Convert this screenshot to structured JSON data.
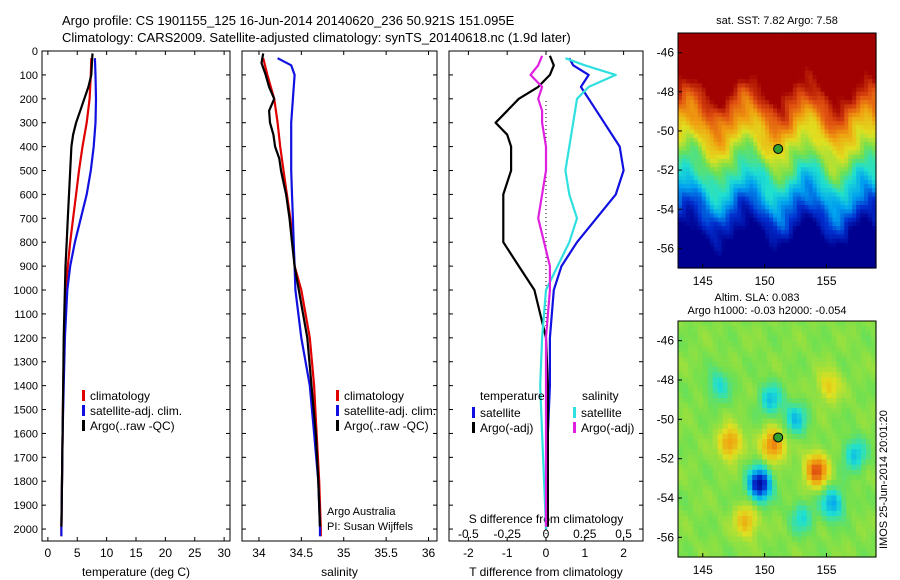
{
  "header": {
    "line1": "Argo profile: CS 1901155_125 16-Jun-2014 20140620_236 50.921S 151.095E",
    "line2": "Climatology: CARS2009. Satellite-adjusted climatology: synTS_20140618.nc (1.9d later)"
  },
  "timestamp": "IMOS 25-Jun-2014 20:01:20",
  "colors": {
    "climatology": "#e00000",
    "satellite": "#1010e0",
    "argo": "#000000",
    "t_satellite": "#1010e0",
    "s_satellite": "#30e0e0",
    "s_argo": "#e020e0"
  },
  "chart_data": [
    {
      "type": "line",
      "xlabel": "temperature (deg C)",
      "xlim": [
        -1,
        31
      ],
      "ylim": [
        2050,
        0
      ],
      "xticks": [
        0,
        5,
        10,
        15,
        20,
        25,
        30
      ],
      "yticks": [
        0,
        100,
        200,
        300,
        400,
        500,
        600,
        700,
        800,
        900,
        1000,
        1100,
        1200,
        1300,
        1400,
        1500,
        1600,
        1700,
        1800,
        1900,
        2000
      ],
      "legend": [
        "climatology",
        "satellite-adj. clim.",
        "Argo(..raw -QC)"
      ],
      "series": [
        {
          "name": "climatology",
          "color": "#e00000",
          "depth": [
            30,
            100,
            200,
            300,
            400,
            500,
            600,
            700,
            800,
            900,
            1000,
            1200,
            1400,
            1600,
            1800,
            2000,
            2030
          ],
          "values": [
            7.4,
            7.3,
            7.1,
            6.6,
            5.9,
            5.3,
            4.8,
            4.3,
            3.8,
            3.4,
            3.1,
            2.8,
            2.6,
            2.5,
            2.4,
            2.3,
            2.3
          ]
        },
        {
          "name": "satellite-adj. clim.",
          "color": "#1010e0",
          "depth": [
            30,
            100,
            200,
            300,
            400,
            500,
            600,
            700,
            800,
            900,
            1000,
            1200,
            1400,
            1600,
            1800,
            2000,
            2030
          ],
          "values": [
            8.0,
            8.1,
            8.2,
            8.1,
            7.8,
            7.3,
            6.6,
            5.6,
            4.6,
            3.8,
            3.3,
            2.9,
            2.7,
            2.5,
            2.4,
            2.3,
            2.3
          ]
        },
        {
          "name": "Argo(..raw -QC)",
          "color": "#000000",
          "depth": [
            10,
            50,
            100,
            150,
            200,
            250,
            300,
            350,
            400,
            450,
            500,
            550,
            600,
            700,
            800,
            900,
            1000,
            1200,
            1400,
            1600,
            1800,
            1990
          ],
          "values": [
            7.6,
            7.5,
            7.4,
            6.9,
            6.2,
            5.5,
            4.8,
            4.3,
            4.0,
            3.9,
            3.8,
            3.7,
            3.6,
            3.4,
            3.2,
            3.0,
            2.9,
            2.7,
            2.6,
            2.5,
            2.4,
            2.3
          ]
        }
      ]
    },
    {
      "type": "line",
      "xlabel": "salinity",
      "xlim": [
        33.8,
        36.1
      ],
      "ylim": [
        2050,
        0
      ],
      "xticks": [
        34,
        34.5,
        35,
        35.5,
        36
      ],
      "legend": [
        "climatology",
        "satellite-adj. clim.",
        "Argo(..raw -QC)"
      ],
      "annotations": [
        "Argo Australia",
        "PI: Susan Wijffels"
      ],
      "series": [
        {
          "name": "climatology",
          "color": "#e00000",
          "depth": [
            30,
            100,
            200,
            300,
            400,
            500,
            600,
            700,
            800,
            900,
            1000,
            1200,
            1400,
            1600,
            1800,
            2000,
            2030
          ],
          "values": [
            34.05,
            34.1,
            34.18,
            34.22,
            34.25,
            34.29,
            34.33,
            34.37,
            34.4,
            34.42,
            34.5,
            34.6,
            34.65,
            34.68,
            34.71,
            34.73,
            34.73
          ]
        },
        {
          "name": "satellite-adj. clim.",
          "color": "#1010e0",
          "depth": [
            30,
            60,
            100,
            200,
            300,
            400,
            500,
            600,
            700,
            800,
            900,
            1000,
            1200,
            1400,
            1600,
            1800,
            2000,
            2030
          ],
          "values": [
            34.22,
            34.38,
            34.42,
            34.4,
            34.38,
            34.38,
            34.38,
            34.39,
            34.4,
            34.41,
            34.42,
            34.43,
            34.5,
            34.6,
            34.65,
            34.7,
            34.72,
            34.72
          ]
        },
        {
          "name": "Argo(..raw -QC)",
          "color": "#000000",
          "depth": [
            10,
            50,
            100,
            150,
            200,
            250,
            300,
            350,
            400,
            450,
            500,
            550,
            600,
            700,
            800,
            900,
            1000,
            1200,
            1400,
            1600,
            1800,
            1990
          ],
          "values": [
            34.05,
            34.03,
            34.08,
            34.12,
            34.18,
            34.12,
            34.13,
            34.17,
            34.19,
            34.24,
            34.26,
            34.29,
            34.32,
            34.36,
            34.39,
            34.42,
            34.47,
            34.57,
            34.62,
            34.67,
            34.7,
            34.72
          ]
        }
      ]
    },
    {
      "type": "line",
      "xlabel": "T difference from climatology",
      "xlabel2": "S difference from climatology",
      "xlim": [
        -2.5,
        2.5
      ],
      "ylim": [
        2050,
        0
      ],
      "xticks": [
        -2,
        -1,
        0,
        1,
        2
      ],
      "s_ticks": [
        "-0.5",
        "-0.25",
        "0",
        "0.25",
        "0.5"
      ],
      "legend": {
        "temperature": [
          "satellite",
          "Argo(-adj)"
        ],
        "salinity": [
          "satellite",
          "Argo(-adj)"
        ],
        "headers": [
          "temperature",
          "salinity"
        ]
      },
      "series": [
        {
          "name": "satellite",
          "color": "#1010e0",
          "depth": [
            30,
            60,
            100,
            150,
            200,
            300,
            400,
            500,
            600,
            700,
            800,
            900,
            1000,
            1200,
            1400,
            1600,
            1800,
            2000
          ],
          "values": [
            0.6,
            0.7,
            1.1,
            0.9,
            1.1,
            1.5,
            1.9,
            2.0,
            1.8,
            1.3,
            0.8,
            0.4,
            0.2,
            0.1,
            0.1,
            0.05,
            0.05,
            0.0
          ]
        },
        {
          "name": "Argo(-adj)",
          "color": "#000000",
          "depth": [
            20,
            60,
            100,
            150,
            200,
            250,
            300,
            350,
            400,
            500,
            600,
            700,
            800,
            900,
            1000,
            1200,
            1400,
            1600,
            1800,
            1990
          ],
          "values": [
            0.1,
            0.2,
            0.1,
            -0.2,
            -0.7,
            -1.0,
            -1.3,
            -1.0,
            -0.9,
            -0.9,
            -1.1,
            -1.1,
            -1.1,
            -0.7,
            -0.3,
            0.0,
            0.05,
            0.05,
            0.05,
            0.05
          ]
        },
        {
          "name": "satellite",
          "color": "#30e0e0",
          "depth": [
            30,
            60,
            100,
            150,
            200,
            300,
            400,
            500,
            600,
            700,
            800,
            900,
            1000,
            1200,
            1400,
            1600,
            1800,
            2000
          ],
          "values": [
            0.5,
            1.0,
            1.8,
            1.1,
            0.8,
            0.7,
            0.6,
            0.5,
            0.6,
            0.8,
            0.6,
            0.3,
            0.0,
            -0.1,
            -0.15,
            -0.1,
            -0.05,
            0.0
          ]
        },
        {
          "name": "Argo(-adj)",
          "color": "#e020e0",
          "depth": [
            20,
            60,
            100,
            150,
            200,
            250,
            300,
            400,
            500,
            600,
            700,
            800,
            900,
            1000,
            1200,
            1400,
            1600,
            1800,
            1990
          ],
          "values": [
            -0.1,
            -0.2,
            -0.4,
            -0.1,
            -0.2,
            -0.1,
            -0.1,
            0.0,
            0.0,
            -0.1,
            -0.2,
            -0.05,
            0.1,
            0.1,
            0.0,
            0.0,
            0.0,
            0.0,
            0.0
          ]
        }
      ]
    },
    {
      "type": "heatmap",
      "title": "sat. SST: 7.82 Argo: 7.58",
      "xlim": [
        143,
        159
      ],
      "ylim": [
        -57,
        -45
      ],
      "xticks": [
        145,
        150,
        155
      ],
      "yticks": [
        -46,
        -48,
        -50,
        -52,
        -54,
        -56
      ],
      "marker": {
        "lon": 151.095,
        "lat": -50.921
      },
      "colormap": [
        "#000090",
        "#0030d0",
        "#00a0f0",
        "#20e0d0",
        "#70e050",
        "#e0e020",
        "#f0a010",
        "#e05010",
        "#a00000"
      ]
    },
    {
      "type": "heatmap",
      "title": "Altim. SLA: 0.083",
      "subtitle": "Argo h1000: -0.03 h2000: -0.054",
      "xlim": [
        143,
        159
      ],
      "ylim": [
        -57,
        -45
      ],
      "xticks": [
        145,
        150,
        155
      ],
      "yticks": [
        -46,
        -48,
        -50,
        -52,
        -54,
        -56
      ],
      "marker": {
        "lon": 151.095,
        "lat": -50.921
      },
      "colormap": [
        "#000090",
        "#0030d0",
        "#00a0f0",
        "#20e0d0",
        "#70e050",
        "#e0e020",
        "#f0a010",
        "#e05010",
        "#a00000"
      ]
    }
  ]
}
